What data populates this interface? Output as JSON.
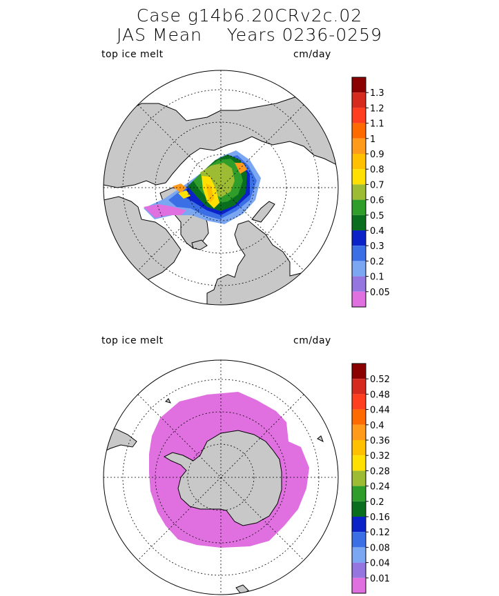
{
  "title": {
    "line1": "Case g14b6.20CRv2c.02",
    "line2": "JAS Mean    Years 0236-0259"
  },
  "panels": [
    {
      "id": "north",
      "field_label": "top ice melt",
      "units_label": "cm/day",
      "colorbar": {
        "labels": [
          "1.3",
          "1.2",
          "1.1",
          "1",
          "0.9",
          "0.8",
          "0.7",
          "0.6",
          "0.5",
          "0.4",
          "0.3",
          "0.2",
          "0.1",
          "0.05"
        ],
        "colors": [
          "#8b0000",
          "#d62a1e",
          "#ff3d1f",
          "#ff6a00",
          "#ff9a1a",
          "#ffc000",
          "#ffe000",
          "#9dbb33",
          "#2e9d2a",
          "#0a6e1f",
          "#0a22c8",
          "#3b6fe6",
          "#7aa6f2",
          "#9575e0",
          "#e070e0"
        ]
      }
    },
    {
      "id": "south",
      "field_label": "top ice melt",
      "units_label": "cm/day",
      "colorbar": {
        "labels": [
          "0.52",
          "0.48",
          "0.44",
          "0.4",
          "0.36",
          "0.32",
          "0.28",
          "0.24",
          "0.2",
          "0.16",
          "0.12",
          "0.08",
          "0.04",
          "0.01"
        ],
        "colors": [
          "#8b0000",
          "#d62a1e",
          "#ff3d1f",
          "#ff6a00",
          "#ff9a1a",
          "#ffc000",
          "#ffe000",
          "#9dbb33",
          "#2e9d2a",
          "#0a6e1f",
          "#0a22c8",
          "#3b6fe6",
          "#7aa6f2",
          "#9575e0",
          "#e070e0"
        ]
      }
    }
  ]
}
